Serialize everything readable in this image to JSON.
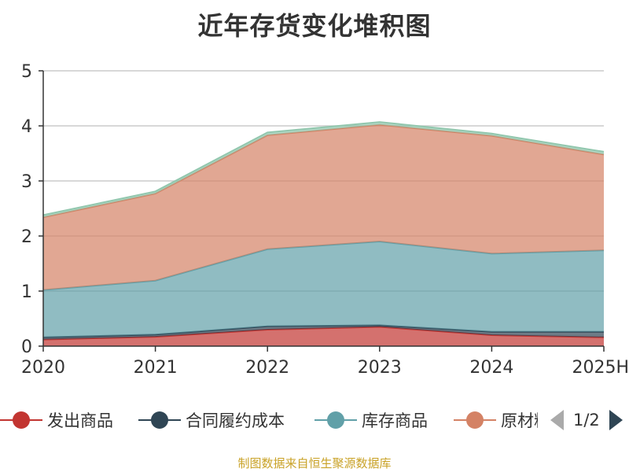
{
  "chart_data": {
    "type": "area",
    "stacked": true,
    "title": "近年存货变化堆积图",
    "ylabel": "",
    "categories": [
      "2020",
      "2021",
      "2022",
      "2023",
      "2024",
      "2025H"
    ],
    "ylim": [
      0,
      5
    ],
    "yticks": [
      "0",
      "1",
      "2",
      "3",
      "4",
      "5"
    ],
    "series": [
      {
        "name": "发出商品",
        "values": [
          0.12,
          0.17,
          0.3,
          0.35,
          0.2,
          0.16
        ],
        "color": "#c23531"
      },
      {
        "name": "合同履约成本",
        "values": [
          0.04,
          0.04,
          0.06,
          0.03,
          0.06,
          0.1
        ],
        "color": "#2f4554"
      },
      {
        "name": "库存商品",
        "values": [
          0.86,
          0.98,
          1.4,
          1.52,
          1.42,
          1.48
        ],
        "color": "#61a0a8"
      },
      {
        "name": "原材料",
        "values": [
          1.32,
          1.58,
          2.07,
          2.12,
          2.14,
          1.74
        ],
        "color": "#d48265"
      },
      {
        "name": "",
        "values": [
          0.04,
          0.04,
          0.05,
          0.05,
          0.04,
          0.05
        ],
        "color": "#91c7ae"
      }
    ],
    "grid": true,
    "legend_position": "bottom"
  },
  "legend": {
    "items": [
      {
        "label": "发出商品",
        "color": "#c23531"
      },
      {
        "label": "合同履约成本",
        "color": "#2f4554"
      },
      {
        "label": "库存商品",
        "color": "#61a0a8"
      },
      {
        "label": "原材料",
        "color": "#d48265"
      }
    ],
    "page_indicator": "1/2"
  },
  "source": "制图数据来自恒生聚源数据库"
}
